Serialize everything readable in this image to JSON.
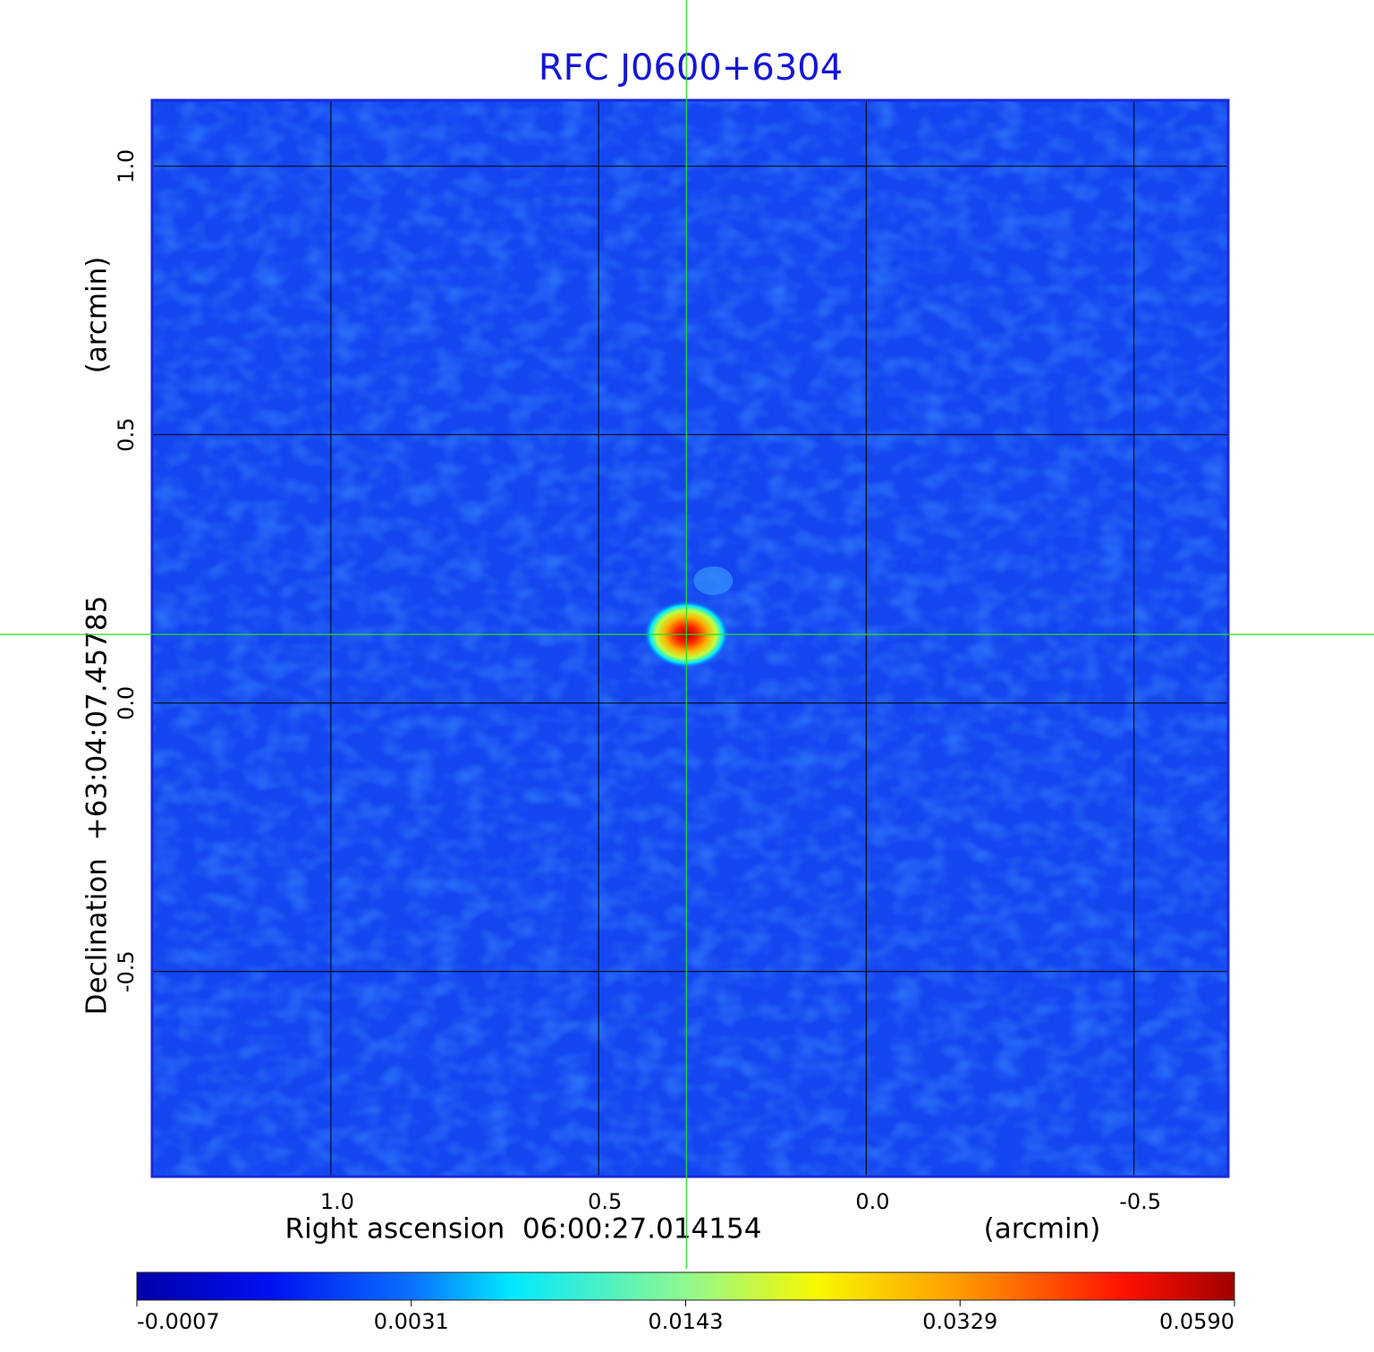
{
  "chart_data": {
    "type": "image",
    "title": "RFC J0600+6304",
    "x_label": "Right ascension  06:00:27.014154",
    "x_unit": "(arcmin)",
    "y_label": "Declination  +63:04:07.45785",
    "y_unit": "(arcmin)",
    "xlim": [
      1.334,
      -0.676
    ],
    "ylim": [
      -0.882,
      1.123
    ],
    "xticks": [
      {
        "value": 1,
        "label": "1.0"
      },
      0.5,
      {
        "value": 0,
        "label": "0.0"
      },
      -0.5
    ],
    "yticks": [
      {
        "value": 1,
        "label": "1.0"
      },
      0.5,
      {
        "value": 0,
        "label": "0.0"
      },
      -0.5
    ],
    "grid": true,
    "colormap": "jet",
    "colorbar_ticks": [
      -0.0007,
      0.0031,
      0.0143,
      0.0329,
      {
        "value": 0.059,
        "label": "0.0590"
      }
    ],
    "source": {
      "x": 0.336,
      "y": 0.128,
      "peak": 0.059
    },
    "crosshair": {
      "x": 0.336,
      "y": 0.128,
      "color": "#22e022"
    }
  }
}
